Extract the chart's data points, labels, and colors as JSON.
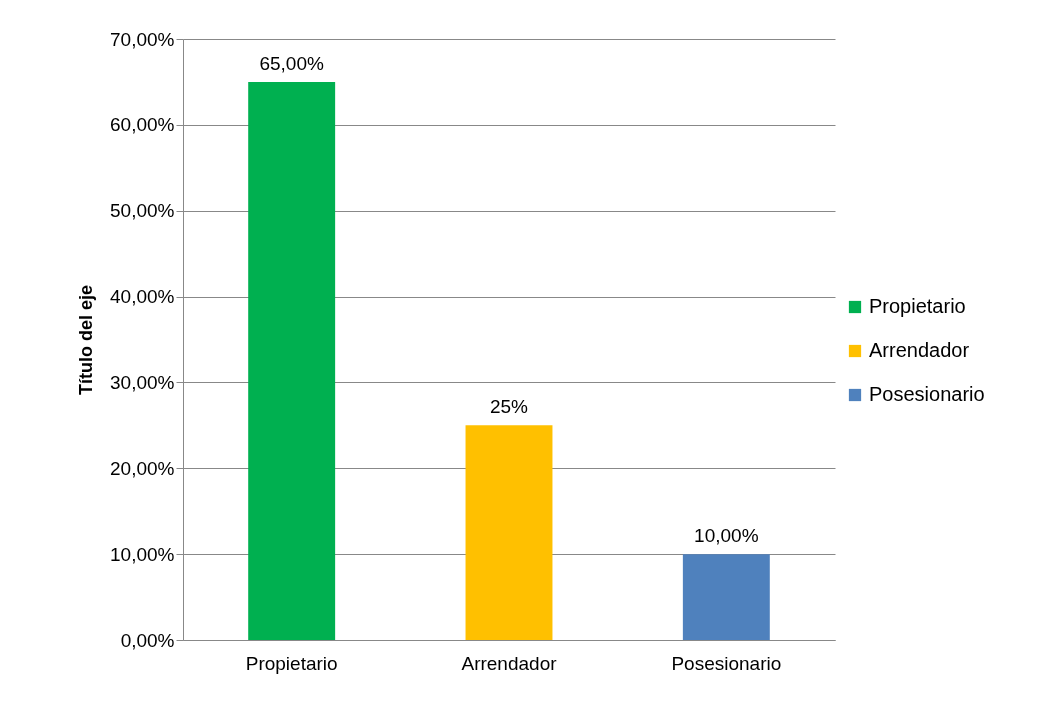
{
  "chart_data": {
    "type": "bar",
    "ylabel": "Título del eje",
    "stacked": true,
    "categories": [
      "Propietario",
      "Arrendador",
      "Posesionario"
    ],
    "series": [
      {
        "name": "Propietario",
        "color": "#00b050",
        "values": [
          65,
          null,
          null
        ],
        "value_labels": [
          "65,00%",
          null,
          null
        ]
      },
      {
        "name": "Arrendador",
        "color": "#ffc000",
        "values": [
          null,
          25,
          null
        ],
        "value_labels": [
          null,
          "25%",
          null
        ]
      },
      {
        "name": "Posesionario",
        "color": "#4f81bd",
        "values": [
          null,
          null,
          10
        ],
        "value_labels": [
          null,
          null,
          "10,00%"
        ]
      }
    ],
    "ylim": [
      0,
      70
    ],
    "yticks": [
      {
        "value": 0,
        "label": "0,00%"
      },
      {
        "value": 10,
        "label": "10,00%"
      },
      {
        "value": 20,
        "label": "20,00%"
      },
      {
        "value": 30,
        "label": "30,00%"
      },
      {
        "value": 40,
        "label": "40,00%"
      },
      {
        "value": 50,
        "label": "50,00%"
      },
      {
        "value": 60,
        "label": "60,00%"
      },
      {
        "value": 70,
        "label": "70,00%"
      }
    ],
    "grid": true,
    "legend": "right"
  }
}
